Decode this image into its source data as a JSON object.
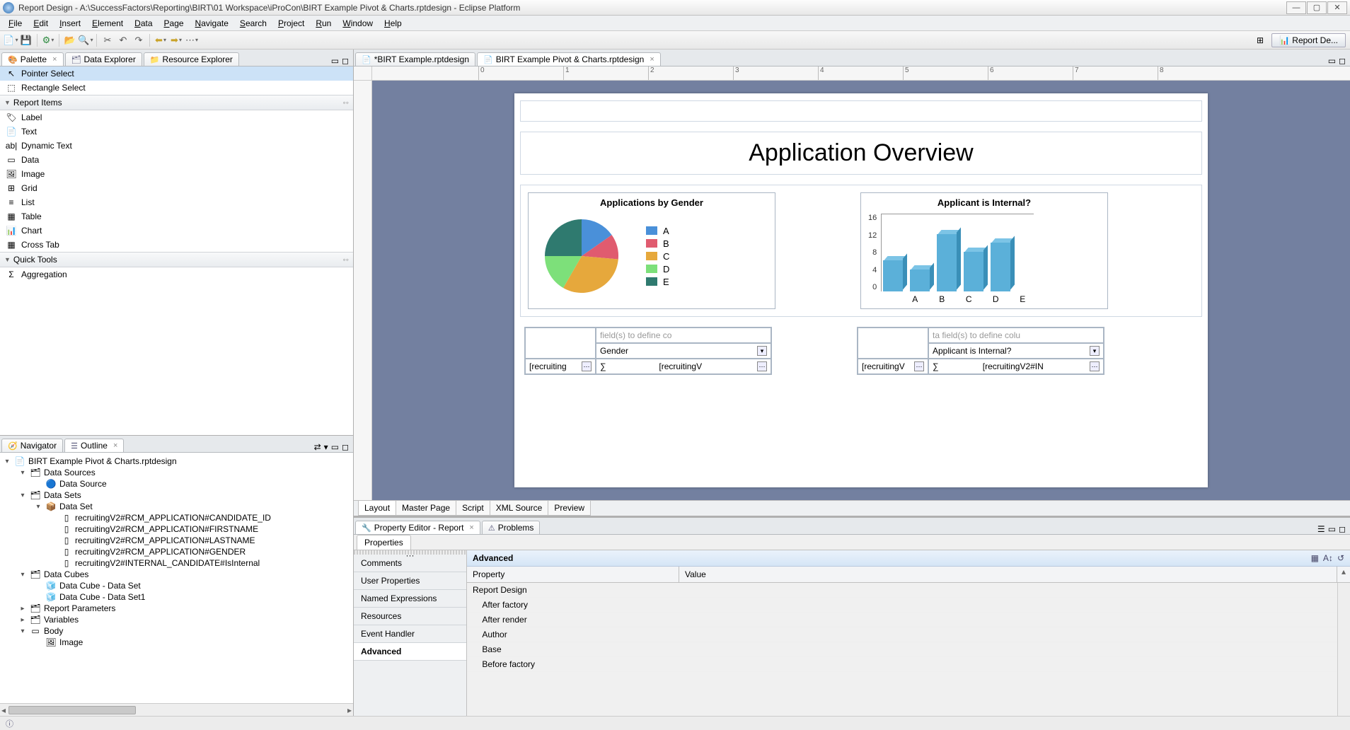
{
  "window": {
    "title": "Report Design - A:\\SuccessFactors\\Reporting\\BIRT\\01 Workspace\\iProCon\\BIRT Example Pivot & Charts.rptdesign - Eclipse Platform"
  },
  "menus": [
    "File",
    "Edit",
    "Insert",
    "Element",
    "Data",
    "Page",
    "Navigate",
    "Search",
    "Project",
    "Run",
    "Window",
    "Help"
  ],
  "perspective": "Report De...",
  "palette": {
    "tab_palette": "Palette",
    "tab_data_explorer": "Data Explorer",
    "tab_resource_explorer": "Resource Explorer",
    "pointer_select": "Pointer Select",
    "rectangle_select": "Rectangle Select",
    "section_report_items": "Report Items",
    "items": [
      "Label",
      "Text",
      "Dynamic Text",
      "Data",
      "Image",
      "Grid",
      "List",
      "Table",
      "Chart",
      "Cross Tab"
    ],
    "section_quick_tools": "Quick Tools",
    "quick_items": [
      "Aggregation"
    ]
  },
  "item_icons": [
    "🏷",
    "📄",
    "ab|",
    "▭",
    "🖼",
    "⊞",
    "≡",
    "▦",
    "📊",
    "▦"
  ],
  "outline": {
    "tab_navigator": "Navigator",
    "tab_outline": "Outline",
    "root": "BIRT Example Pivot & Charts.rptdesign",
    "data_sources": "Data Sources",
    "data_source": "Data Source",
    "data_sets": "Data Sets",
    "data_set": "Data Set",
    "ds_fields": [
      "recruitingV2#RCM_APPLICATION#CANDIDATE_ID",
      "recruitingV2#RCM_APPLICATION#FIRSTNAME",
      "recruitingV2#RCM_APPLICATION#LASTNAME",
      "recruitingV2#RCM_APPLICATION#GENDER",
      "recruitingV2#INTERNAL_CANDIDATE#IsInternal"
    ],
    "data_cubes": "Data Cubes",
    "cube1": "Data Cube - Data Set",
    "cube2": "Data Cube - Data Set1",
    "report_params": "Report Parameters",
    "variables": "Variables",
    "body": "Body",
    "image": "Image"
  },
  "editor": {
    "tab1": "*BIRT Example.rptdesign",
    "tab2": "BIRT Example Pivot & Charts.rptdesign",
    "ruler_inches": [
      0,
      1,
      2,
      3,
      4,
      5,
      6,
      7,
      8
    ],
    "report_title": "Application Overview",
    "pie_chart": {
      "title": "Applications by Gender",
      "slices": [
        {
          "label": "A",
          "color": "#4a90d9",
          "angle": 55
        },
        {
          "label": "B",
          "color": "#e05b6f",
          "angle": 40
        },
        {
          "label": "C",
          "color": "#e6a83c",
          "angle": 115
        },
        {
          "label": "D",
          "color": "#7de07a",
          "angle": 60
        },
        {
          "label": "E",
          "color": "#2f7a6f",
          "angle": 90
        }
      ]
    },
    "bar_chart": {
      "title": "Applicant is Internal?",
      "y_ticks": [
        16,
        12,
        8,
        4,
        0
      ],
      "categories": [
        "A",
        "B",
        "C",
        "D",
        "E"
      ],
      "values": [
        7,
        5,
        13,
        9,
        11
      ],
      "bar_front": "#5bb0d9",
      "bar_top": "#7cc4e6",
      "bar_side": "#3a8fb8",
      "ymax": 16
    },
    "crosstab1": {
      "hint": "field(s) to define co",
      "dim": "Gender",
      "m1": "[recruiting",
      "m2": "[recruitingV"
    },
    "crosstab2": {
      "hint": "ta field(s) to define colu",
      "dim": "Applicant is Internal?",
      "m1": "[recruitingV",
      "m2": "[recruitingV2#IN"
    },
    "bottom_tabs": [
      "Layout",
      "Master Page",
      "Script",
      "XML Source",
      "Preview"
    ]
  },
  "property": {
    "tab_editor": "Property Editor - Report",
    "tab_problems": "Problems",
    "subtab": "Properties",
    "categories": [
      "Comments",
      "User Properties",
      "Named Expressions",
      "Resources",
      "Event Handler",
      "Advanced"
    ],
    "active_cat": "Advanced",
    "header": "Advanced",
    "col_property": "Property",
    "col_value": "Value",
    "rows": [
      "Report Design",
      "After factory",
      "After render",
      "Author",
      "Base",
      "Before factory"
    ]
  },
  "colors": {
    "canvas_bg": "#7380a0",
    "border": "#aab6c4"
  }
}
